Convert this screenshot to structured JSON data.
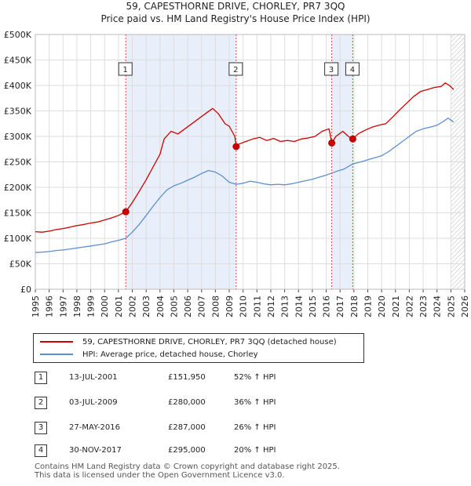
{
  "title": "59, CAPESTHORNE DRIVE, CHORLEY, PR7 3QQ",
  "subtitle": "Price paid vs. HM Land Registry's House Price Index (HPI)",
  "colors": {
    "property": "#cc0000",
    "hpi": "#5b8fd0",
    "shade": "#e8eefa",
    "grid": "#dddddd",
    "marker_line": "#dd4444"
  },
  "legend": [
    {
      "label": "59, CAPESTHORNE DRIVE, CHORLEY, PR7 3QQ (detached house)",
      "color": "#cc0000"
    },
    {
      "label": "HPI: Average price, detached house, Chorley",
      "color": "#5b8fd0"
    }
  ],
  "transactions": [
    {
      "num": "1",
      "date": "13-JUL-2001",
      "price": "£151,950",
      "hpi": "52% ↑ HPI"
    },
    {
      "num": "2",
      "date": "03-JUL-2009",
      "price": "£280,000",
      "hpi": "36% ↑ HPI"
    },
    {
      "num": "3",
      "date": "27-MAY-2016",
      "price": "£287,000",
      "hpi": "26% ↑ HPI"
    },
    {
      "num": "4",
      "date": "30-NOV-2017",
      "price": "£295,000",
      "hpi": "20% ↑ HPI"
    }
  ],
  "footer": {
    "line1": "Contains HM Land Registry data © Crown copyright and database right 2025.",
    "line2": "This data is licensed under the Open Government Licence v3.0."
  },
  "chart_data": {
    "type": "line",
    "title": "59, CAPESTHORNE DRIVE, CHORLEY, PR7 3QQ",
    "subtitle": "Price paid vs. HM Land Registry's House Price Index (HPI)",
    "xlabel": "",
    "ylabel": "",
    "xlim": [
      1995,
      2026
    ],
    "ylim": [
      0,
      500000
    ],
    "x_ticks": [
      1995,
      1996,
      1997,
      1998,
      1999,
      2000,
      2001,
      2002,
      2003,
      2004,
      2005,
      2006,
      2007,
      2008,
      2009,
      2010,
      2011,
      2012,
      2013,
      2014,
      2015,
      2016,
      2017,
      2018,
      2019,
      2020,
      2021,
      2022,
      2023,
      2024,
      2025,
      2026
    ],
    "y_ticks": [
      {
        "value": 0,
        "label": "£0"
      },
      {
        "value": 50000,
        "label": "£50K"
      },
      {
        "value": 100000,
        "label": "£100K"
      },
      {
        "value": 150000,
        "label": "£150K"
      },
      {
        "value": 200000,
        "label": "£200K"
      },
      {
        "value": 250000,
        "label": "£250K"
      },
      {
        "value": 300000,
        "label": "£300K"
      },
      {
        "value": 350000,
        "label": "£350K"
      },
      {
        "value": 400000,
        "label": "£400K"
      },
      {
        "value": 450000,
        "label": "£450K"
      },
      {
        "value": 500000,
        "label": "£500K"
      }
    ],
    "grid": true,
    "shaded_ranges": [
      [
        2001.53,
        2009.5
      ],
      [
        2016.4,
        2017.92
      ]
    ],
    "hatched_from": 2025.0,
    "markers": [
      {
        "label": "1",
        "x": 2001.53,
        "y": 151950
      },
      {
        "label": "2",
        "x": 2009.5,
        "y": 280000
      },
      {
        "label": "3",
        "x": 2016.4,
        "y": 287000
      },
      {
        "label": "4",
        "x": 2017.92,
        "y": 295000
      }
    ],
    "series": [
      {
        "name": "59, CAPESTHORNE DRIVE, CHORLEY, PR7 3QQ (detached house)",
        "color": "#cc0000",
        "points": [
          [
            1995.0,
            113000
          ],
          [
            1995.5,
            112000
          ],
          [
            1996.0,
            114000
          ],
          [
            1996.5,
            117000
          ],
          [
            1997.0,
            119000
          ],
          [
            1997.5,
            122000
          ],
          [
            1998.0,
            125000
          ],
          [
            1998.5,
            127000
          ],
          [
            1999.0,
            130000
          ],
          [
            1999.5,
            132000
          ],
          [
            2000.0,
            136000
          ],
          [
            2000.5,
            140000
          ],
          [
            2001.0,
            145000
          ],
          [
            2001.53,
            151950
          ],
          [
            2002.0,
            170000
          ],
          [
            2002.5,
            192000
          ],
          [
            2003.0,
            215000
          ],
          [
            2003.5,
            240000
          ],
          [
            2004.0,
            265000
          ],
          [
            2004.3,
            295000
          ],
          [
            2004.8,
            310000
          ],
          [
            2005.3,
            305000
          ],
          [
            2005.8,
            315000
          ],
          [
            2006.3,
            325000
          ],
          [
            2006.8,
            335000
          ],
          [
            2007.3,
            345000
          ],
          [
            2007.8,
            355000
          ],
          [
            2008.2,
            345000
          ],
          [
            2008.7,
            325000
          ],
          [
            2009.0,
            320000
          ],
          [
            2009.4,
            300000
          ],
          [
            2009.5,
            280000
          ],
          [
            2009.7,
            285000
          ],
          [
            2010.2,
            290000
          ],
          [
            2010.7,
            295000
          ],
          [
            2011.2,
            298000
          ],
          [
            2011.7,
            292000
          ],
          [
            2012.2,
            296000
          ],
          [
            2012.7,
            290000
          ],
          [
            2013.2,
            292000
          ],
          [
            2013.7,
            290000
          ],
          [
            2014.2,
            295000
          ],
          [
            2014.7,
            297000
          ],
          [
            2015.2,
            300000
          ],
          [
            2015.7,
            310000
          ],
          [
            2016.2,
            315000
          ],
          [
            2016.4,
            287000
          ],
          [
            2016.7,
            300000
          ],
          [
            2017.2,
            310000
          ],
          [
            2017.6,
            300000
          ],
          [
            2017.92,
            295000
          ],
          [
            2018.3,
            305000
          ],
          [
            2018.8,
            312000
          ],
          [
            2019.3,
            318000
          ],
          [
            2019.8,
            322000
          ],
          [
            2020.3,
            325000
          ],
          [
            2020.8,
            338000
          ],
          [
            2021.3,
            352000
          ],
          [
            2021.8,
            365000
          ],
          [
            2022.3,
            378000
          ],
          [
            2022.8,
            388000
          ],
          [
            2023.3,
            392000
          ],
          [
            2023.8,
            396000
          ],
          [
            2024.3,
            398000
          ],
          [
            2024.6,
            405000
          ],
          [
            2024.9,
            400000
          ],
          [
            2025.2,
            392000
          ]
        ]
      },
      {
        "name": "HPI: Average price, detached house, Chorley",
        "color": "#5b8fd0",
        "points": [
          [
            1995.0,
            72000
          ],
          [
            1995.5,
            73000
          ],
          [
            1996.0,
            74000
          ],
          [
            1996.5,
            76000
          ],
          [
            1997.0,
            77000
          ],
          [
            1997.5,
            79000
          ],
          [
            1998.0,
            81000
          ],
          [
            1998.5,
            83000
          ],
          [
            1999.0,
            85000
          ],
          [
            1999.5,
            87000
          ],
          [
            2000.0,
            89000
          ],
          [
            2000.5,
            93000
          ],
          [
            2001.0,
            96000
          ],
          [
            2001.53,
            100000
          ],
          [
            2002.0,
            112000
          ],
          [
            2002.5,
            127000
          ],
          [
            2003.0,
            145000
          ],
          [
            2003.5,
            163000
          ],
          [
            2004.0,
            180000
          ],
          [
            2004.5,
            195000
          ],
          [
            2005.0,
            203000
          ],
          [
            2005.5,
            208000
          ],
          [
            2006.0,
            214000
          ],
          [
            2006.5,
            220000
          ],
          [
            2007.0,
            227000
          ],
          [
            2007.5,
            233000
          ],
          [
            2008.0,
            230000
          ],
          [
            2008.5,
            222000
          ],
          [
            2009.0,
            210000
          ],
          [
            2009.5,
            206000
          ],
          [
            2010.0,
            208000
          ],
          [
            2010.5,
            212000
          ],
          [
            2011.0,
            210000
          ],
          [
            2011.5,
            207000
          ],
          [
            2012.0,
            205000
          ],
          [
            2012.5,
            206000
          ],
          [
            2013.0,
            205000
          ],
          [
            2013.5,
            207000
          ],
          [
            2014.0,
            210000
          ],
          [
            2014.5,
            213000
          ],
          [
            2015.0,
            216000
          ],
          [
            2015.5,
            220000
          ],
          [
            2016.0,
            224000
          ],
          [
            2016.4,
            228000
          ],
          [
            2016.8,
            232000
          ],
          [
            2017.3,
            236000
          ],
          [
            2017.92,
            246000
          ],
          [
            2018.5,
            250000
          ],
          [
            2019.0,
            254000
          ],
          [
            2019.5,
            258000
          ],
          [
            2020.0,
            262000
          ],
          [
            2020.5,
            270000
          ],
          [
            2021.0,
            280000
          ],
          [
            2021.5,
            290000
          ],
          [
            2022.0,
            300000
          ],
          [
            2022.5,
            310000
          ],
          [
            2023.0,
            315000
          ],
          [
            2023.5,
            318000
          ],
          [
            2024.0,
            322000
          ],
          [
            2024.5,
            330000
          ],
          [
            2024.8,
            336000
          ],
          [
            2025.2,
            328000
          ]
        ]
      }
    ]
  }
}
